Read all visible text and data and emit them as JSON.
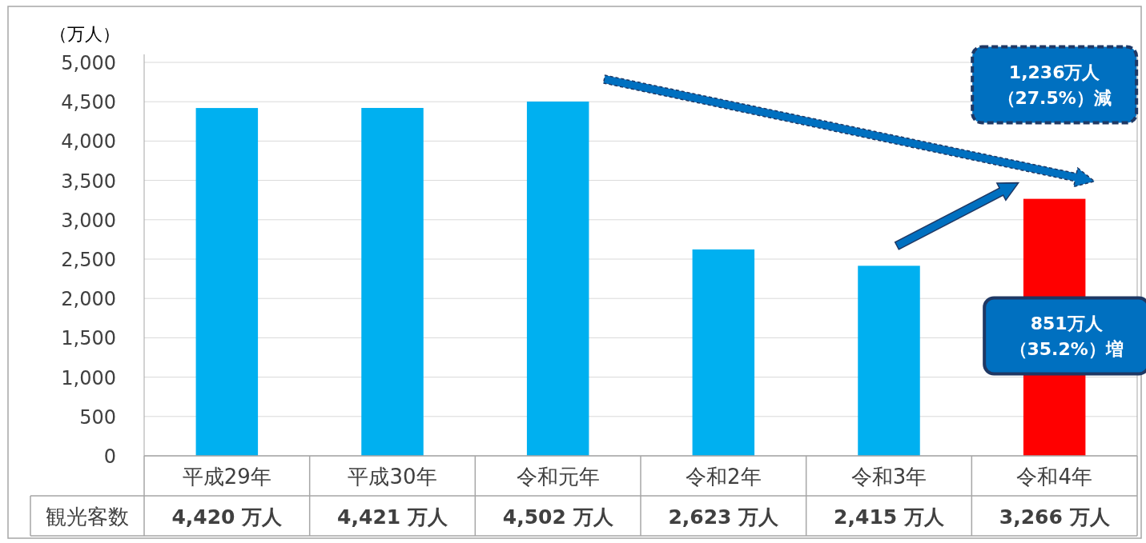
{
  "chart_data": {
    "type": "bar",
    "ylabel": "（万人）",
    "categories": [
      "平成29年",
      "平成30年",
      "令和元年",
      "令和2年",
      "令和3年",
      "令和4年"
    ],
    "series": [
      {
        "name": "観光客数",
        "colors": [
          "#00b0f0",
          "#00b0f0",
          "#00b0f0",
          "#00b0f0",
          "#00b0f0",
          "#ff0000"
        ],
        "values": [
          4420,
          4421,
          4502,
          2623,
          2415,
          3266
        ],
        "value_labels": [
          "4,420 万人",
          "4,421 万人",
          "4,502 万人",
          "2,623 万人",
          "2,415 万人",
          "3,266 万人"
        ]
      }
    ],
    "ylim": [
      0,
      5000
    ],
    "yticks": [
      {
        "value": 0,
        "label": "0"
      },
      {
        "value": 500,
        "label": "500"
      },
      {
        "value": 1000,
        "label": "1,000"
      },
      {
        "value": 1500,
        "label": "1,500"
      },
      {
        "value": 2000,
        "label": "2,000"
      },
      {
        "value": 2500,
        "label": "2,500"
      },
      {
        "value": 3000,
        "label": "3,000"
      },
      {
        "value": 3500,
        "label": "3,500"
      },
      {
        "value": 4000,
        "label": "4,000"
      },
      {
        "value": 4500,
        "label": "4,500"
      },
      {
        "value": 5000,
        "label": "5,000"
      }
    ],
    "grid": "y",
    "annotations": [
      "1,236万人",
      "（27.5%）減",
      "851万人",
      "（35.2%）増"
    ]
  }
}
